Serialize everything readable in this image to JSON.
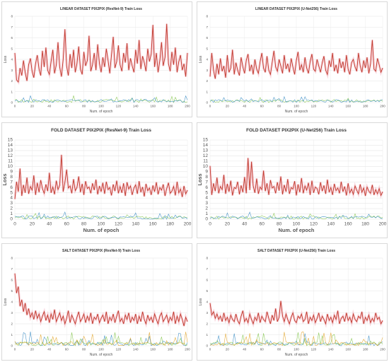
{
  "colors": {
    "generator": "#c0392b",
    "halo": "#f4b6c2",
    "series_blue": "#2e86c1",
    "series_green": "#7dc242",
    "series_orange": "#e0a020",
    "grid": "#e6e6e6",
    "axis_text": "#555555",
    "title_text": "#333333"
  },
  "chart_data": [
    {
      "type": "line",
      "title": "LINEAR DATASET PIX2PIX (ResNet-9) Train Loss",
      "xlabel": "Num. of epoch",
      "ylabel": "Loss",
      "xlim": [
        0,
        200
      ],
      "ylim": [
        0,
        8
      ],
      "xticks": [
        "0",
        "20",
        "40",
        "60",
        "80",
        "100",
        "120",
        "140",
        "160",
        "180",
        "200"
      ],
      "yticks": [
        "0",
        "1",
        "2",
        "3",
        "4",
        "5",
        "6",
        "7",
        "8"
      ],
      "series": [
        {
          "values": [
            4.6,
            2.1,
            1.9,
            3.2,
            2.5,
            3.9,
            2.8,
            2.0,
            3.5,
            4.1,
            2.9,
            2.3,
            3.6,
            4.4,
            3.1,
            2.5,
            4.8,
            3.3,
            5.1,
            3.0,
            2.6,
            3.8,
            4.9,
            2.7,
            3.5,
            5.6,
            3.3,
            2.4,
            4.0,
            6.8,
            3.4,
            2.5,
            4.5,
            3.2,
            4.9,
            2.8,
            3.6,
            5.2,
            3.1,
            2.6,
            4.7,
            3.4,
            3.9,
            6.2,
            2.9,
            3.5,
            4.6,
            3.0,
            5.4,
            3.6,
            2.8,
            4.2,
            3.3,
            5.0,
            3.9,
            2.7,
            4.4,
            6.1,
            3.2,
            3.8,
            5.3,
            3.5,
            2.9,
            4.6,
            3.7,
            5.5,
            3.0,
            4.1,
            3.4,
            2.8,
            4.9,
            3.6,
            5.8,
            3.1,
            4.3,
            3.7,
            2.9,
            5.0,
            3.8,
            4.5,
            7.2,
            3.3,
            4.6,
            2.8,
            3.9,
            5.6,
            3.4,
            4.2,
            7.3,
            3.6,
            2.9,
            4.7,
            3.5,
            5.1,
            2.8,
            3.8,
            4.4,
            3.0,
            3.6,
            2.4,
            4.6
          ]
        }
      ]
    },
    {
      "type": "line",
      "title": "LINEAR DATASET PIX2PIX (U-Net256) Train Loss",
      "xlabel": "Num. of epoch",
      "ylabel": "Loss",
      "xlim": [
        0,
        200
      ],
      "ylim": [
        0,
        8
      ],
      "xticks": [
        "0",
        "20",
        "40",
        "60",
        "80",
        "100",
        "120",
        "140",
        "160",
        "180",
        "200"
      ],
      "yticks": [
        "0",
        "1",
        "2",
        "3",
        "4",
        "5",
        "6",
        "7",
        "8"
      ],
      "series": [
        {
          "values": [
            2.4,
            4.6,
            3.0,
            2.2,
            3.6,
            2.6,
            4.1,
            2.9,
            3.4,
            2.3,
            4.4,
            2.8,
            3.2,
            4.9,
            2.6,
            3.7,
            3.0,
            2.5,
            4.2,
            3.3,
            2.7,
            3.9,
            4.5,
            2.9,
            3.5,
            2.6,
            4.0,
            3.1,
            2.7,
            3.8,
            4.6,
            3.2,
            2.8,
            4.3,
            3.0,
            2.6,
            3.7,
            4.8,
            3.3,
            2.9,
            4.0,
            3.4,
            2.7,
            4.4,
            3.1,
            3.6,
            2.8,
            4.1,
            3.3,
            2.6,
            3.9,
            4.7,
            3.0,
            3.5,
            2.8,
            4.2,
            3.2,
            2.7,
            3.8,
            4.5,
            3.1,
            2.9,
            4.0,
            3.4,
            2.8,
            3.7,
            4.3,
            3.0,
            2.6,
            3.9,
            3.3,
            4.6,
            2.9,
            3.5,
            2.7,
            4.1,
            3.2,
            3.8,
            2.8,
            4.4,
            3.1,
            2.6,
            3.7,
            4.0,
            3.3,
            2.9,
            4.6,
            3.4,
            2.8,
            3.9,
            3.2,
            4.2,
            2.7,
            3.6,
            5.8,
            3.1,
            2.9,
            4.1,
            3.5,
            2.8,
            3.2
          ]
        }
      ]
    },
    {
      "type": "line",
      "title": "FOLD DATASET PIX2PIX (ResNet-9) Train Loss",
      "xlabel": "Num. of epoch",
      "ylabel": "Loss",
      "xlim": [
        0,
        200
      ],
      "ylim": [
        0,
        15
      ],
      "xticks": [
        "0",
        "20",
        "40",
        "60",
        "80",
        "100",
        "120",
        "140",
        "160",
        "180",
        "200"
      ],
      "yticks": [
        "0",
        "1",
        "2",
        "3",
        "4",
        "5",
        "6",
        "7",
        "8",
        "9",
        "10",
        "11",
        "12",
        "13",
        "14",
        "15"
      ],
      "series": [
        {
          "values": [
            3.8,
            7.1,
            5.2,
            9.6,
            4.4,
            6.5,
            5.0,
            7.9,
            4.8,
            6.2,
            5.5,
            8.3,
            4.6,
            6.9,
            5.1,
            7.4,
            5.8,
            4.9,
            6.6,
            5.3,
            8.8,
            5.0,
            6.1,
            4.7,
            7.3,
            5.6,
            6.4,
            12.2,
            5.2,
            7.0,
            9.4,
            5.9,
            6.3,
            4.9,
            7.6,
            5.4,
            6.0,
            8.1,
            5.1,
            6.7,
            4.6,
            7.2,
            5.8,
            6.1,
            4.9,
            6.8,
            5.5,
            7.5,
            4.7,
            6.3,
            5.2,
            6.9,
            4.8,
            7.1,
            5.6,
            6.0,
            4.5,
            6.6,
            5.3,
            7.3,
            4.9,
            6.2,
            5.0,
            6.8,
            4.4,
            7.0,
            5.7,
            6.3,
            4.6,
            5.9,
            6.5,
            4.8,
            7.2,
            5.1,
            6.1,
            4.3,
            6.7,
            5.4,
            5.9,
            4.6,
            6.4,
            5.2,
            7.0,
            4.7,
            6.0,
            5.5,
            6.6,
            4.4,
            5.8,
            6.9,
            4.9,
            5.3,
            6.2,
            4.5,
            7.1,
            5.0,
            5.7,
            4.2,
            6.3,
            4.8,
            5.5
          ]
        }
      ]
    },
    {
      "type": "line",
      "title": "FOLD DATASET PIX2PIX (U-Net256) Train Loss",
      "xlabel": "Num. of epoch",
      "ylabel": "Loss",
      "xlim": [
        0,
        200
      ],
      "ylim": [
        0,
        15
      ],
      "xticks": [
        "0",
        "20",
        "40",
        "60",
        "80",
        "100",
        "120",
        "140",
        "160",
        "180",
        "200"
      ],
      "yticks": [
        "0",
        "1",
        "2",
        "3",
        "4",
        "5",
        "6",
        "7",
        "8",
        "9",
        "10",
        "11",
        "12",
        "13",
        "14",
        "15"
      ],
      "series": [
        {
          "values": [
            10.1,
            4.6,
            6.8,
            5.3,
            7.9,
            4.9,
            6.2,
            5.6,
            8.4,
            4.8,
            6.7,
            5.2,
            7.3,
            4.5,
            6.0,
            5.8,
            7.1,
            4.7,
            6.4,
            5.1,
            8.0,
            4.9,
            11.6,
            5.5,
            10.9,
            6.3,
            5.0,
            7.7,
            4.8,
            6.1,
            5.6,
            9.2,
            5.3,
            6.8,
            4.6,
            7.4,
            5.9,
            6.2,
            4.9,
            7.0,
            5.4,
            8.1,
            4.7,
            6.5,
            5.2,
            7.6,
            4.8,
            6.0,
            5.7,
            7.2,
            4.5,
            6.6,
            5.1,
            7.8,
            4.9,
            6.3,
            5.5,
            6.9,
            4.6,
            7.3,
            5.0,
            6.1,
            5.8,
            4.7,
            7.0,
            5.3,
            6.4,
            4.8,
            7.5,
            5.1,
            6.0,
            4.6,
            6.7,
            5.4,
            5.9,
            4.9,
            7.1,
            5.2,
            6.2,
            4.5,
            6.8,
            5.0,
            5.7,
            4.7,
            6.3,
            5.5,
            4.8,
            6.6,
            5.1,
            5.9,
            4.4,
            6.1,
            5.3,
            4.9,
            6.5,
            4.6,
            5.6,
            4.8,
            5.8,
            4.5,
            5.2
          ]
        }
      ]
    },
    {
      "type": "line",
      "title": "SALT DATASET PIX2PIX (ResNet-9) Train Loss",
      "xlabel": "Num. of epoch",
      "ylabel": "Loss",
      "xlim": [
        0,
        200
      ],
      "ylim": [
        0,
        8
      ],
      "xticks": [
        "0",
        "20",
        "40",
        "60",
        "80",
        "100",
        "120",
        "140",
        "160",
        "180",
        "200"
      ],
      "yticks": [
        "0",
        "1",
        "2",
        "3",
        "4",
        "5",
        "6",
        "7",
        "8"
      ],
      "series": [
        {
          "values": [
            6.6,
            4.8,
            5.4,
            3.6,
            4.2,
            3.1,
            3.9,
            2.8,
            3.4,
            2.6,
            3.0,
            2.4,
            3.2,
            2.5,
            2.9,
            2.2,
            2.7,
            3.1,
            2.3,
            2.8,
            2.1,
            2.9,
            2.4,
            3.3,
            2.2,
            2.6,
            3.0,
            2.3,
            2.7,
            2.0,
            2.5,
            3.2,
            2.1,
            2.8,
            2.4,
            2.0,
            2.6,
            3.1,
            2.2,
            2.5,
            2.9,
            2.1,
            2.7,
            2.3,
            3.0,
            2.0,
            2.6,
            2.4,
            2.9,
            2.1,
            2.5,
            2.8,
            2.2,
            3.1,
            2.0,
            2.6,
            2.3,
            2.9,
            2.1,
            2.7,
            3.2,
            2.2,
            2.5,
            2.0,
            2.8,
            2.4,
            3.0,
            2.1,
            2.6,
            2.3,
            2.9,
            2.0,
            2.7,
            2.2,
            3.1,
            2.4,
            2.0,
            2.8,
            2.3,
            2.6,
            2.1,
            2.9,
            2.4,
            2.0,
            2.7,
            3.0,
            2.2,
            2.5,
            2.8,
            2.1,
            2.6,
            2.3,
            3.1,
            2.0,
            2.7,
            2.2,
            2.9,
            2.4,
            1.8,
            2.6,
            2.2
          ]
        }
      ]
    },
    {
      "type": "line",
      "title": "SALT DATASET PIX2PIX (U-Net256) Train Loss",
      "xlabel": "Num. of epoch",
      "ylabel": "Loss",
      "xlim": [
        0,
        200
      ],
      "ylim": [
        0,
        8
      ],
      "xticks": [
        "0",
        "20",
        "40",
        "60",
        "80",
        "100",
        "120",
        "140",
        "160",
        "180",
        "200"
      ],
      "yticks": [
        "0",
        "1",
        "2",
        "3",
        "4",
        "5",
        "6",
        "7",
        "8"
      ],
      "series": [
        {
          "values": [
            3.9,
            2.8,
            3.1,
            2.5,
            2.9,
            2.4,
            2.7,
            2.2,
            3.0,
            2.3,
            2.6,
            2.1,
            2.8,
            2.4,
            2.2,
            2.9,
            2.3,
            2.0,
            2.7,
            3.2,
            2.2,
            2.5,
            2.1,
            2.9,
            2.4,
            2.0,
            2.6,
            2.3,
            3.0,
            2.1,
            2.7,
            2.4,
            2.2,
            3.1,
            2.5,
            2.0,
            2.8,
            2.3,
            3.4,
            2.2,
            2.6,
            4.1,
            2.7,
            2.2,
            2.9,
            2.4,
            2.0,
            2.6,
            3.0,
            2.3,
            2.1,
            2.7,
            2.5,
            2.9,
            2.2,
            2.4,
            3.1,
            2.0,
            2.6,
            2.3,
            2.8,
            2.1,
            2.5,
            3.0,
            2.2,
            2.7,
            2.4,
            2.0,
            2.9,
            2.3,
            2.6,
            2.1,
            2.8,
            2.4,
            3.2,
            2.0,
            2.5,
            2.7,
            2.2,
            3.0,
            2.3,
            2.6,
            2.1,
            2.9,
            2.4,
            2.2,
            2.7,
            2.5,
            3.1,
            2.0,
            2.6,
            2.3,
            2.8,
            2.1,
            2.5,
            2.2,
            3.0,
            2.4,
            2.6,
            2.0,
            2.3
          ]
        }
      ]
    }
  ]
}
